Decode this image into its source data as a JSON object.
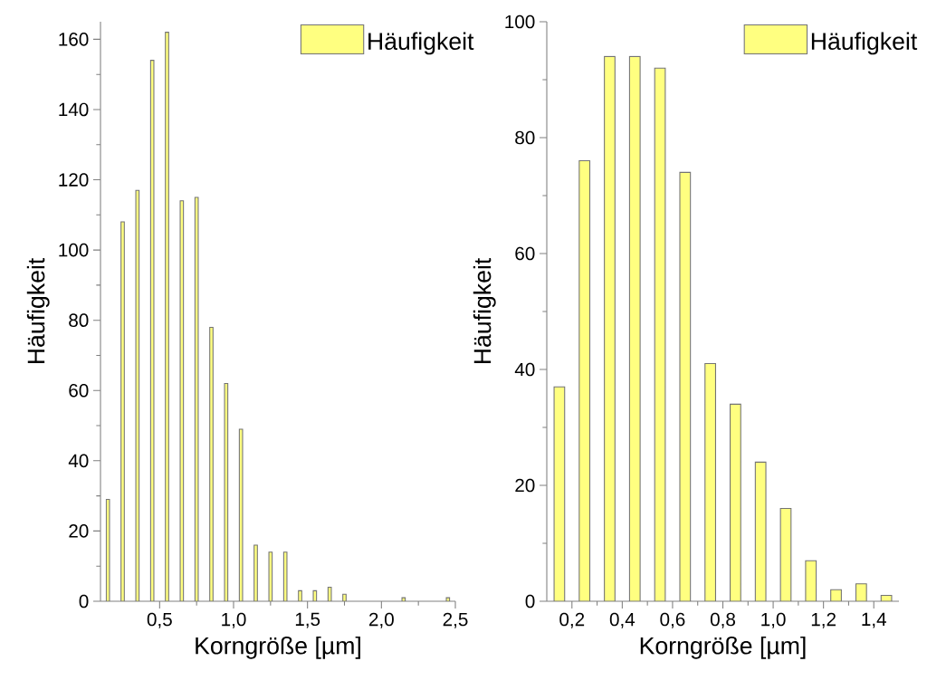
{
  "chart_data": [
    {
      "type": "bar",
      "xlabel": "Korngröße [µm]",
      "ylabel": "Häufigkeit",
      "legend": "top right",
      "x": [
        0.15,
        0.25,
        0.35,
        0.45,
        0.55,
        0.65,
        0.75,
        0.85,
        0.95,
        1.05,
        1.15,
        1.25,
        1.35,
        1.45,
        1.55,
        1.65,
        1.75,
        2.15,
        2.45
      ],
      "series": [
        {
          "name": "Häufigkeit",
          "color": "#ffff80",
          "values": [
            29,
            108,
            117,
            154,
            162,
            114,
            115,
            78,
            62,
            49,
            16,
            14,
            14,
            3,
            3,
            4,
            2,
            1,
            1
          ]
        }
      ],
      "xlim": [
        0.1,
        2.5
      ],
      "ylim": [
        0,
        165
      ],
      "xticks": [
        {
          "value": 0.5,
          "label": "0,5"
        },
        {
          "value": 1.0,
          "label": "1,0"
        },
        {
          "value": 1.5,
          "label": "1,5"
        },
        {
          "value": 2.0,
          "label": "2,0"
        },
        {
          "value": 2.5,
          "label": "2,5"
        }
      ],
      "yticks": [
        0,
        20,
        40,
        60,
        80,
        100,
        120,
        140,
        160
      ]
    },
    {
      "type": "bar",
      "xlabel": "Korngröße [µm]",
      "ylabel": "Häufigkeit",
      "legend": "top right",
      "x": [
        0.15,
        0.25,
        0.35,
        0.45,
        0.55,
        0.65,
        0.75,
        0.85,
        0.95,
        1.05,
        1.15,
        1.25,
        1.35,
        1.45
      ],
      "series": [
        {
          "name": "Häufigkeit",
          "color": "#ffff80",
          "values": [
            37,
            76,
            94,
            94,
            92,
            74,
            41,
            34,
            24,
            16,
            7,
            2,
            3,
            1
          ]
        }
      ],
      "xlim": [
        0.1,
        1.5
      ],
      "ylim": [
        0,
        100
      ],
      "xticks": [
        {
          "value": 0.2,
          "label": "0,2"
        },
        {
          "value": 0.4,
          "label": "0,4"
        },
        {
          "value": 0.6,
          "label": "0,6"
        },
        {
          "value": 0.8,
          "label": "0,8"
        },
        {
          "value": 1.0,
          "label": "1,0"
        },
        {
          "value": 1.2,
          "label": "1,2"
        },
        {
          "value": 1.4,
          "label": "1,4"
        }
      ],
      "yticks": [
        0,
        20,
        40,
        60,
        80,
        100
      ]
    }
  ]
}
